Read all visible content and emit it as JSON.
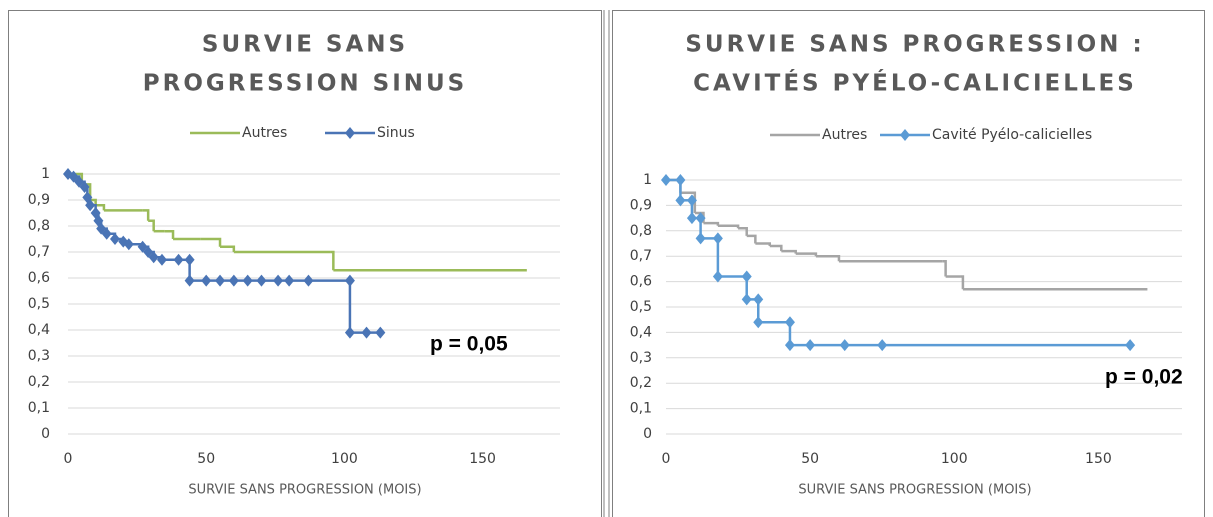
{
  "chart_data": [
    {
      "type": "line",
      "step": true,
      "title": [
        "SURVIE SANS",
        "PROGRESSION SINUS"
      ],
      "x_label": "SURVIE SANS PROGRESSION (MOIS)",
      "xlim": [
        0,
        178
      ],
      "xticks": [
        0,
        50,
        100,
        150
      ],
      "ylim": [
        0,
        1
      ],
      "yticks": [
        0,
        {
          "value": 0.1,
          "label": "0,1"
        },
        {
          "value": 0.2,
          "label": "0,2"
        },
        {
          "value": 0.3,
          "label": "0,3"
        },
        {
          "value": 0.4,
          "label": "0,4"
        },
        {
          "value": 0.5,
          "label": "0,5"
        },
        {
          "value": 0.6,
          "label": "0,6"
        },
        {
          "value": 0.7,
          "label": "0,7"
        },
        {
          "value": 0.8,
          "label": "0,8"
        },
        {
          "value": 0.9,
          "label": "0,9"
        },
        1
      ],
      "grid": true,
      "legend": "top",
      "annotation": "p = 0,05",
      "series": [
        {
          "name": "Autres",
          "color": "#9bbb59",
          "markers": false,
          "x": [
            0,
            5,
            8,
            10,
            13,
            27,
            29,
            31,
            35,
            38,
            48,
            55,
            60,
            95,
            96,
            166
          ],
          "values": [
            1,
            0.96,
            0.9,
            0.88,
            0.86,
            0.86,
            0.82,
            0.78,
            0.78,
            0.75,
            0.75,
            0.72,
            0.7,
            0.7,
            0.63,
            0.63
          ]
        },
        {
          "name": "Sinus",
          "color": "#4a74b5",
          "markers": true,
          "x": [
            0,
            2,
            4,
            6,
            7,
            8,
            10,
            11,
            12,
            14,
            17,
            20,
            22,
            27,
            29,
            31,
            34,
            40,
            44,
            44,
            50,
            55,
            60,
            65,
            70,
            76,
            80,
            87,
            102,
            102,
            108,
            113
          ],
          "values": [
            1,
            0.99,
            0.97,
            0.95,
            0.91,
            0.88,
            0.85,
            0.82,
            0.79,
            0.77,
            0.75,
            0.74,
            0.73,
            0.72,
            0.7,
            0.68,
            0.67,
            0.67,
            0.67,
            0.59,
            0.59,
            0.59,
            0.59,
            0.59,
            0.59,
            0.59,
            0.59,
            0.59,
            0.59,
            0.39,
            0.39,
            0.39
          ]
        }
      ]
    },
    {
      "type": "line",
      "step": true,
      "title": [
        "SURVIE SANS PROGRESSION :",
        "CAVITÉS PYÉLO-CALICIELLES"
      ],
      "x_label": "SURVIE SANS PROGRESSION (MOIS)",
      "xlim": [
        0,
        179
      ],
      "xticks": [
        0,
        50,
        100,
        150
      ],
      "ylim": [
        0,
        1
      ],
      "yticks": [
        0,
        {
          "value": 0.1,
          "label": "0,1"
        },
        {
          "value": 0.2,
          "label": "0,2"
        },
        {
          "value": 0.3,
          "label": "0,3"
        },
        {
          "value": 0.4,
          "label": "0,4"
        },
        {
          "value": 0.5,
          "label": "0,5"
        },
        {
          "value": 0.6,
          "label": "0,6"
        },
        {
          "value": 0.7,
          "label": "0,7"
        },
        {
          "value": 0.8,
          "label": "0,8"
        },
        {
          "value": 0.9,
          "label": "0,9"
        },
        1
      ],
      "grid": true,
      "legend": "top",
      "annotation": "p = 0,02",
      "series": [
        {
          "name": "Autres",
          "color": "#a5a5a5",
          "markers": false,
          "x": [
            0,
            5,
            10,
            13,
            18,
            25,
            28,
            31,
            36,
            40,
            45,
            52,
            60,
            96,
            97,
            102,
            103,
            167
          ],
          "values": [
            1,
            0.95,
            0.87,
            0.83,
            0.82,
            0.81,
            0.78,
            0.75,
            0.74,
            0.72,
            0.71,
            0.7,
            0.68,
            0.68,
            0.62,
            0.62,
            0.57,
            0.57
          ]
        },
        {
          "name": "Cavité Pyélo-calicielles",
          "color": "#5b9bd5",
          "markers": true,
          "x": [
            0,
            5,
            5,
            9,
            9,
            12,
            12,
            18,
            18,
            28,
            28,
            32,
            32,
            43,
            43,
            50,
            62,
            75,
            161
          ],
          "values": [
            1,
            1,
            0.92,
            0.92,
            0.85,
            0.85,
            0.77,
            0.77,
            0.62,
            0.62,
            0.53,
            0.53,
            0.44,
            0.44,
            0.35,
            0.35,
            0.35,
            0.35,
            0.35
          ]
        }
      ]
    }
  ]
}
